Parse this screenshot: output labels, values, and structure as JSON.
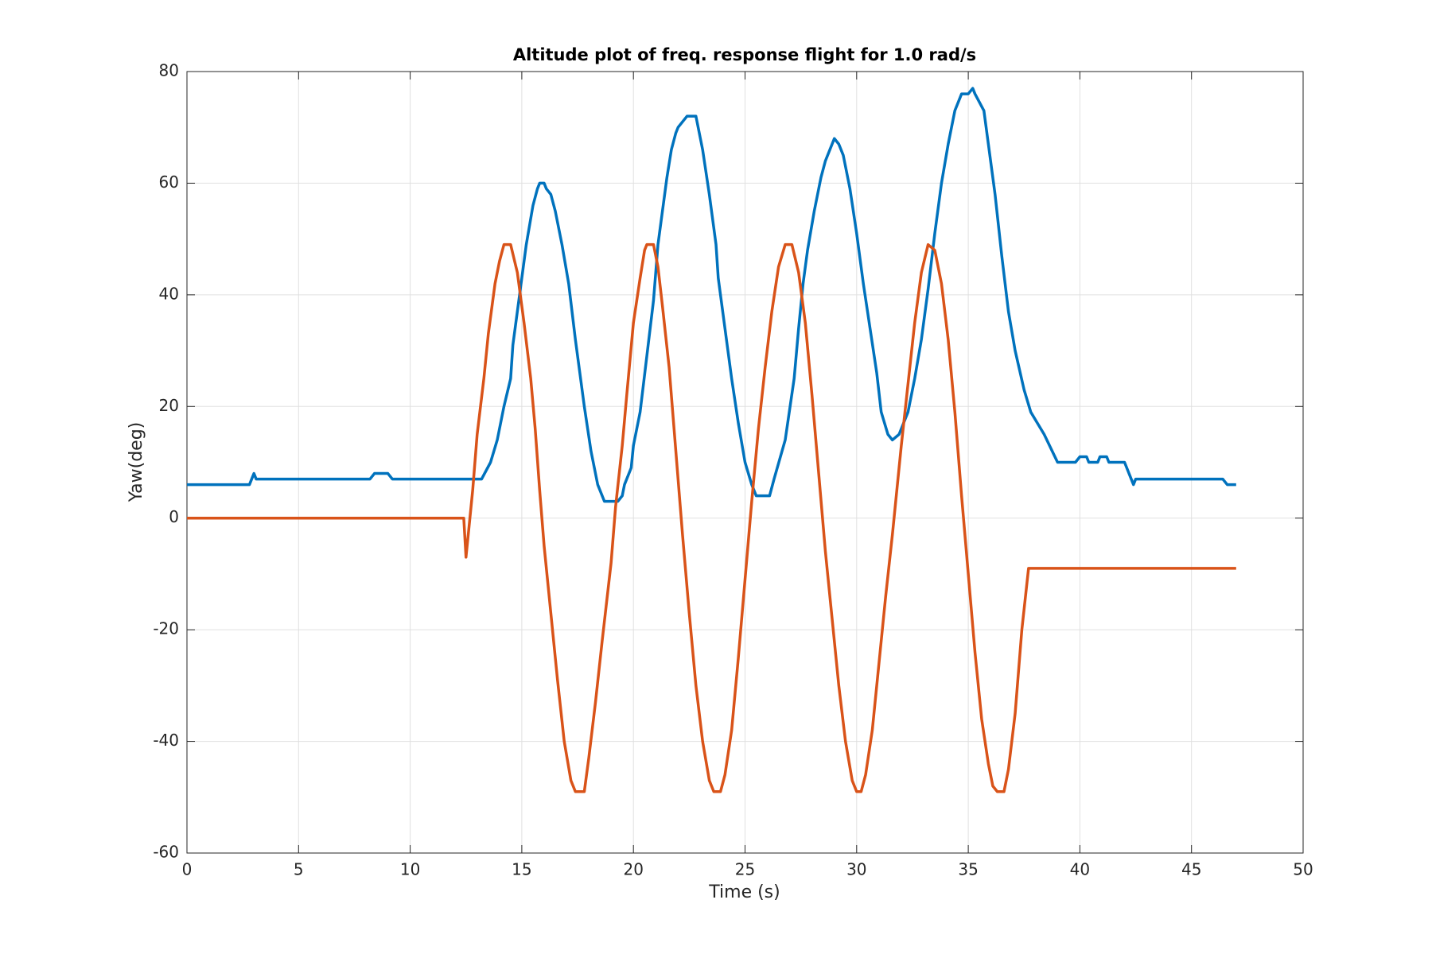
{
  "chart_data": {
    "type": "line",
    "title": "Altitude plot of freq. response flight for 1.0 rad/s",
    "x_label": "Time (s)",
    "y_label": "Yaw(deg)",
    "xlim": [
      0,
      50
    ],
    "xticks": [
      0,
      5,
      10,
      15,
      20,
      25,
      30,
      35,
      40,
      45,
      50
    ],
    "ylim": [
      -60,
      80
    ],
    "yticks": [
      -60,
      -40,
      -20,
      0,
      20,
      40,
      60,
      80
    ],
    "grid": true,
    "series": [
      {
        "color": "#0072bd",
        "x": [
          0,
          2.8,
          3.0,
          3.1,
          8.2,
          8.4,
          9.0,
          9.2,
          13.2,
          13.6,
          13.9,
          14.2,
          14.5,
          14.6,
          14.9,
          15.2,
          15.5,
          15.7,
          15.8,
          16.0,
          16.1,
          16.3,
          16.5,
          16.8,
          17.1,
          17.4,
          17.8,
          18.1,
          18.4,
          18.7,
          19.3,
          19.5,
          19.6,
          19.9,
          20.0,
          20.3,
          20.6,
          20.9,
          21.1,
          21.3,
          21.5,
          21.7,
          21.9,
          22.0,
          22.2,
          22.4,
          22.8,
          22.9,
          23.1,
          23.4,
          23.7,
          23.8,
          24.1,
          24.4,
          24.7,
          25.0,
          25.3,
          25.5,
          26.1,
          26.3,
          26.8,
          27.2,
          27.4,
          27.6,
          27.8,
          28.1,
          28.4,
          28.6,
          28.9,
          29.0,
          29.2,
          29.4,
          29.7,
          30.0,
          30.3,
          30.6,
          30.9,
          31.1,
          31.4,
          31.6,
          31.9,
          32.3,
          32.6,
          32.9,
          33.2,
          33.5,
          33.8,
          34.1,
          34.4,
          34.7,
          35.0,
          35.2,
          35.3,
          35.7,
          35.9,
          36.2,
          36.5,
          36.8,
          37.1,
          37.5,
          37.8,
          38.1,
          38.4,
          39.0,
          39.8,
          40.0,
          40.3,
          40.4,
          40.8,
          40.9,
          41.2,
          41.3,
          42.0,
          42.1,
          42.3,
          42.4,
          42.5,
          46.4,
          46.6,
          47.0
        ],
        "values": [
          6,
          6,
          8,
          7,
          7,
          8,
          8,
          7,
          7,
          10,
          14,
          20,
          25,
          31,
          40,
          49,
          56,
          59,
          60,
          60,
          59,
          58,
          55,
          49,
          42,
          32,
          20,
          12,
          6,
          3,
          3,
          4,
          6,
          9,
          13,
          19,
          29,
          39,
          49,
          55,
          61,
          66,
          69,
          70,
          71,
          72,
          72,
          70,
          66,
          58,
          49,
          43,
          34,
          25,
          17,
          10,
          6,
          4,
          4,
          7,
          14,
          25,
          34,
          42,
          48,
          55,
          61,
          64,
          67,
          68,
          67,
          65,
          59,
          51,
          42,
          34,
          26,
          19,
          15,
          14,
          15,
          19,
          25,
          32,
          41,
          51,
          60,
          67,
          73,
          76,
          76,
          77,
          76,
          73,
          67,
          58,
          47,
          37,
          30,
          23,
          19,
          17,
          15,
          10,
          10,
          11,
          11,
          10,
          10,
          11,
          11,
          10,
          10,
          9,
          7,
          6,
          7,
          7,
          6,
          6
        ]
      },
      {
        "color": "#d95319",
        "x": [
          0,
          12.4,
          12.5,
          12.6,
          12.8,
          13.0,
          13.3,
          13.5,
          13.8,
          14.0,
          14.2,
          14.5,
          14.8,
          15.1,
          15.4,
          15.6,
          15.8,
          16.0,
          16.3,
          16.6,
          16.9,
          17.2,
          17.4,
          17.8,
          18.0,
          18.3,
          18.6,
          19.0,
          19.2,
          19.5,
          19.7,
          20.0,
          20.3,
          20.5,
          20.6,
          20.9,
          21.1,
          21.3,
          21.6,
          21.9,
          22.2,
          22.5,
          22.8,
          23.1,
          23.4,
          23.6,
          23.9,
          24.1,
          24.4,
          24.7,
          25.0,
          25.3,
          25.6,
          25.9,
          26.2,
          26.5,
          26.8,
          27.1,
          27.4,
          27.7,
          28.0,
          28.3,
          28.6,
          28.9,
          29.2,
          29.5,
          29.8,
          30.0,
          30.2,
          30.4,
          30.7,
          31.0,
          31.3,
          31.6,
          31.8,
          32.0,
          32.3,
          32.6,
          32.9,
          33.2,
          33.5,
          33.8,
          34.1,
          34.4,
          34.7,
          35.0,
          35.3,
          35.6,
          35.9,
          36.1,
          36.3,
          36.6,
          36.8,
          37.1,
          37.4,
          37.7,
          47.0
        ],
        "values": [
          0,
          0,
          -7,
          -3,
          5,
          15,
          25,
          33,
          42,
          46,
          49,
          49,
          44,
          35,
          25,
          16,
          5,
          -5,
          -17,
          -29,
          -40,
          -47,
          -49,
          -49,
          -43,
          -33,
          -22,
          -8,
          2,
          13,
          22,
          35,
          43,
          48,
          49,
          49,
          45,
          38,
          27,
          12,
          -3,
          -17,
          -30,
          -40,
          -47,
          -49,
          -49,
          -46,
          -38,
          -25,
          -11,
          3,
          16,
          27,
          37,
          45,
          49,
          49,
          44,
          35,
          22,
          8,
          -6,
          -18,
          -30,
          -40,
          -47,
          -49,
          -49,
          -46,
          -38,
          -26,
          -14,
          -3,
          5,
          13,
          24,
          35,
          44,
          49,
          48,
          42,
          32,
          19,
          4,
          -10,
          -24,
          -36,
          -44,
          -48,
          -49,
          -49,
          -45,
          -35,
          -20,
          -9,
          -9
        ]
      }
    ]
  }
}
